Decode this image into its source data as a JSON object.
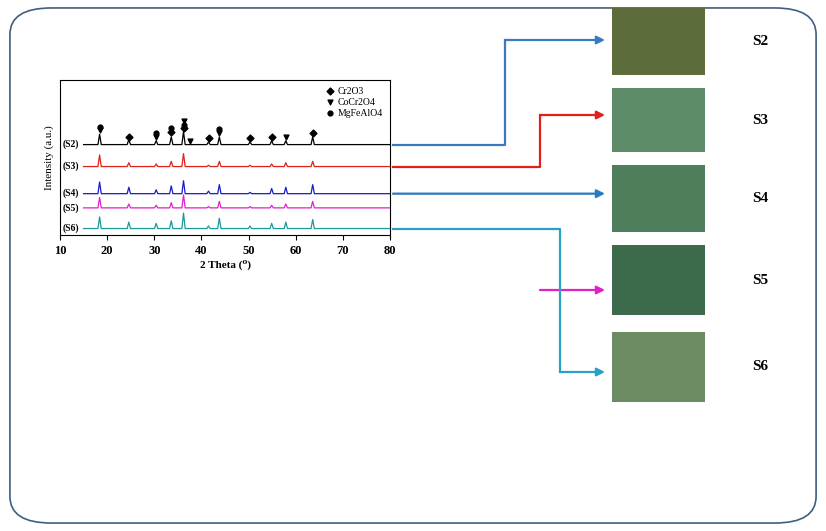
{
  "chart_data": {
    "type": "line",
    "xlabel": "2 Theta (⁰)",
    "ylabel": "Intensity (a.u.)",
    "x": [
      15,
      18.05,
      18.4,
      18.75,
      24.25,
      24.6,
      24.95,
      30.05,
      30.4,
      30.75,
      33.25,
      33.6,
      33.95,
      35.85,
      36.2,
      36.55,
      41.15,
      41.5,
      41.85,
      43.45,
      43.8,
      44.15,
      49.95,
      50.3,
      50.65,
      54.55,
      54.9,
      55.25,
      57.55,
      57.9,
      58.25,
      63.25,
      63.6,
      63.95,
      80
    ],
    "xlim": [
      10,
      80
    ],
    "xticks": [
      10,
      20,
      30,
      40,
      50,
      60,
      70,
      80
    ],
    "ylim": [
      0,
      120
    ],
    "yticks": [],
    "tick_labels": "x",
    "legend": "upper right",
    "series": [
      {
        "name": "(S2)",
        "color": "#000000",
        "values": [
          70,
          70,
          78,
          70,
          70,
          74,
          70,
          70,
          73,
          70,
          70,
          76,
          70,
          70,
          80,
          70,
          70,
          72,
          70,
          70,
          76,
          70,
          70,
          72,
          70,
          70,
          73,
          70,
          70,
          73,
          70,
          70,
          76,
          70,
          70
        ]
      },
      {
        "name": "(S3)",
        "color": "#e0201b",
        "values": [
          53,
          53,
          62,
          53,
          53,
          56,
          53,
          53,
          55,
          53,
          53,
          57,
          53,
          53,
          63,
          53,
          53,
          54,
          53,
          53,
          57,
          53,
          53,
          54,
          53,
          53,
          55,
          53,
          53,
          56,
          53,
          53,
          57,
          53,
          53
        ]
      },
      {
        "name": "(S4)",
        "color": "#1a1acc",
        "values": [
          32,
          32,
          41,
          32,
          32,
          37,
          32,
          32,
          35,
          32,
          32,
          38,
          32,
          32,
          42,
          32,
          32,
          34,
          32,
          32,
          39,
          32,
          32,
          33,
          32,
          32,
          36,
          32,
          32,
          37,
          32,
          32,
          39,
          32,
          32
        ]
      },
      {
        "name": "(S5)",
        "color": "#e020c8",
        "values": [
          21,
          21,
          29,
          21,
          21,
          24,
          21,
          21,
          23,
          21,
          21,
          25,
          21,
          21,
          31,
          21,
          21,
          22,
          21,
          21,
          26,
          21,
          21,
          22,
          21,
          21,
          23,
          21,
          21,
          24,
          21,
          21,
          26,
          21,
          21
        ]
      },
      {
        "name": "(S6)",
        "color": "#1a9a9a",
        "values": [
          5,
          5,
          14,
          5,
          5,
          10,
          5,
          5,
          9,
          5,
          5,
          11,
          5,
          5,
          17,
          5,
          5,
          7,
          5,
          5,
          13,
          5,
          5,
          7,
          5,
          5,
          9,
          5,
          5,
          10,
          5,
          5,
          12,
          5,
          5
        ]
      },
      {
        "name": "Cr2O3",
        "type": "scatter",
        "marker": "diamond",
        "color": "#000000",
        "x": [
          24.6,
          33.6,
          36.2,
          41.5,
          50.3,
          54.9,
          63.6
        ],
        "values": [
          76,
          80,
          83,
          75,
          75,
          76,
          79
        ]
      },
      {
        "name": "CoCr2O4",
        "type": "scatter",
        "marker": "triangle_down",
        "color": "#000000",
        "x": [
          18.4,
          30.4,
          36.2,
          37.5,
          43.8,
          57.9
        ],
        "values": [
          81,
          76,
          88,
          73,
          79,
          76
        ]
      },
      {
        "name": "MgFeAlO4",
        "type": "scatter",
        "marker": "circle",
        "color": "#000000",
        "x": [
          18.4,
          30.4,
          33.6,
          36.2,
          43.8
        ],
        "values": [
          84,
          79,
          83,
          85.5,
          82
        ]
      }
    ]
  },
  "photos": {
    "labels": [
      "S2",
      "S3",
      "S4",
      "S5",
      "S6"
    ]
  }
}
